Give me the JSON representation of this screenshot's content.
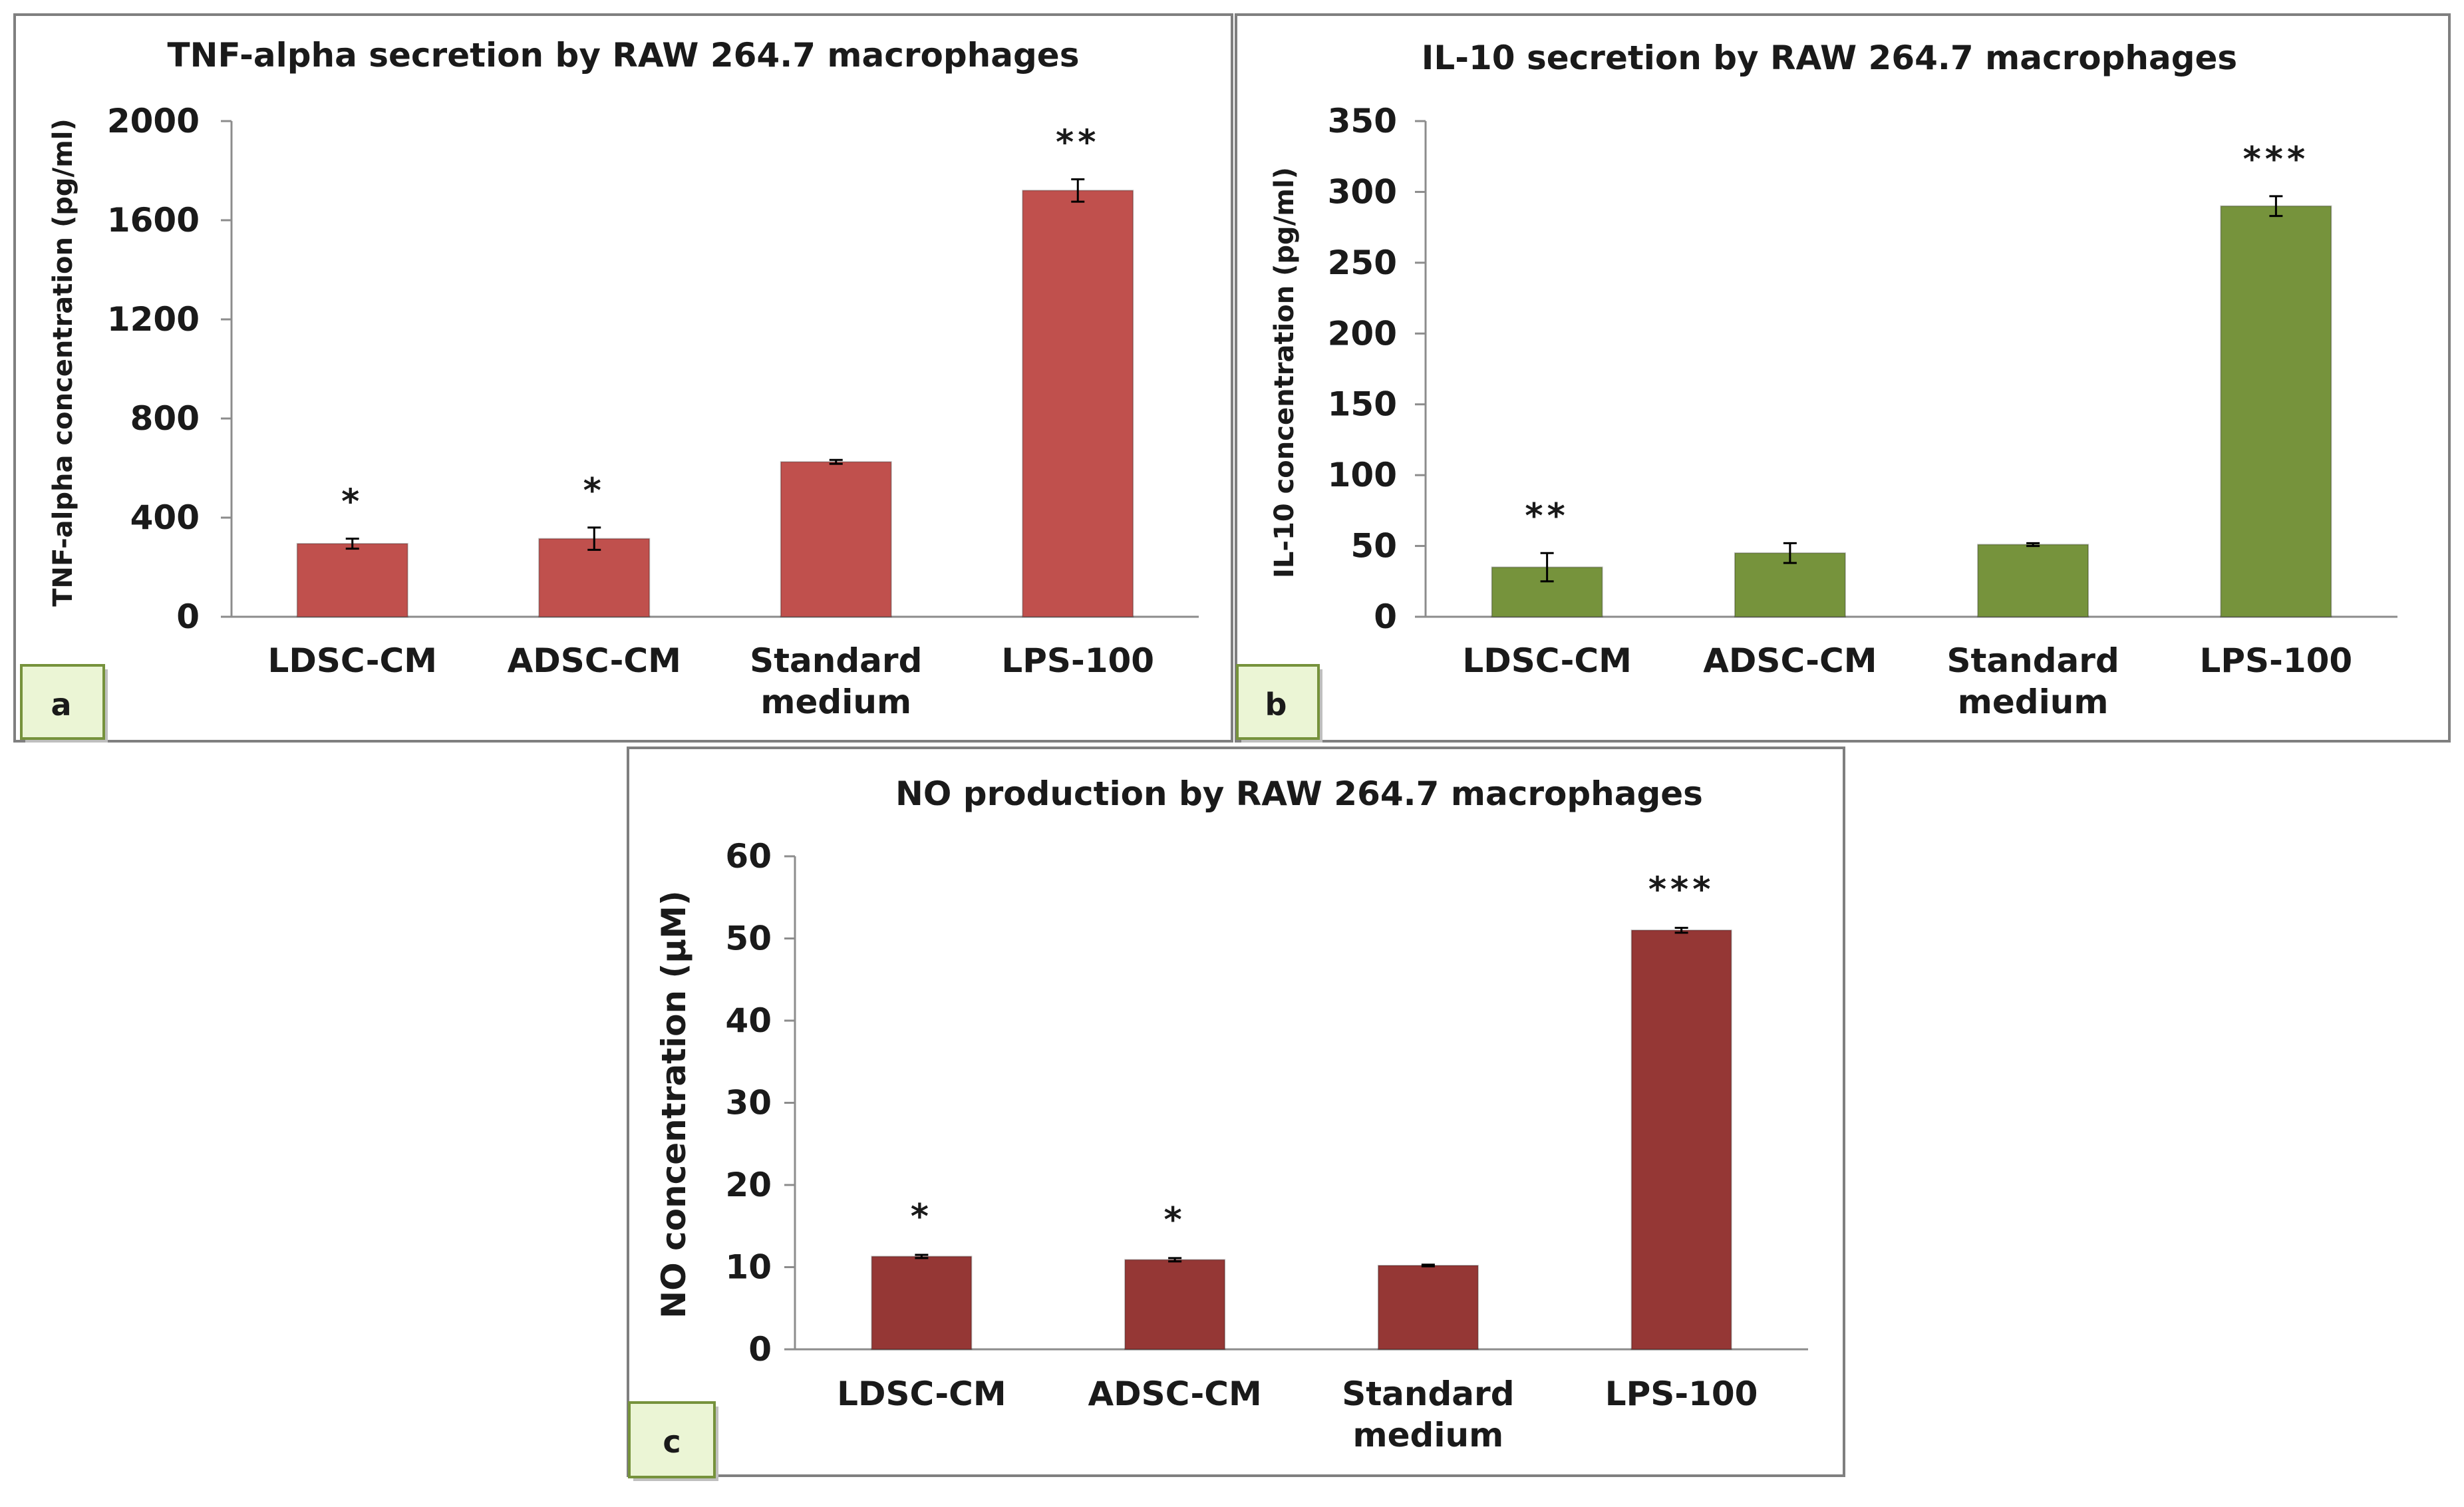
{
  "chart_data": [
    {
      "panel": "a",
      "type": "bar",
      "title": "TNF-alpha secretion by RAW 264.7 macrophages",
      "ylabel": "TNF-alpha concentration (pg/ml)",
      "xlabel": "",
      "ylim": [
        0,
        2000
      ],
      "yticks": [
        0,
        400,
        800,
        1200,
        1600,
        2000
      ],
      "categories": [
        [
          "LDSC-CM"
        ],
        [
          "ADSC-CM"
        ],
        [
          "Standard",
          "medium"
        ],
        [
          "LPS-100"
        ]
      ],
      "values": [
        295,
        315,
        625,
        1720
      ],
      "errors": [
        20,
        45,
        8,
        45
      ],
      "significance": [
        "*",
        "*",
        "",
        "**"
      ],
      "color": "#c0504d"
    },
    {
      "panel": "b",
      "type": "bar",
      "title": "IL-10 secretion by RAW 264.7 macrophages",
      "ylabel": "IL-10 concentration (pg/ml)",
      "xlabel": "",
      "ylim": [
        0,
        350
      ],
      "yticks": [
        0,
        50,
        100,
        150,
        200,
        250,
        300,
        350
      ],
      "categories": [
        [
          "LDSC-CM"
        ],
        [
          "ADSC-CM"
        ],
        [
          "Standard",
          "medium"
        ],
        [
          "LPS-100"
        ]
      ],
      "values": [
        35,
        45,
        51,
        290
      ],
      "errors": [
        10,
        7,
        1,
        7
      ],
      "significance": [
        "**",
        "",
        "",
        "***"
      ],
      "color": "#76933c"
    },
    {
      "panel": "c",
      "type": "bar",
      "title": "NO production by RAW 264.7 macrophages",
      "ylabel": "NO concentration (µM)",
      "xlabel": "",
      "ylim": [
        0,
        60
      ],
      "yticks": [
        0,
        10,
        20,
        30,
        40,
        50,
        60
      ],
      "categories": [
        [
          "LDSC-CM"
        ],
        [
          "ADSC-CM"
        ],
        [
          "Standard",
          "medium"
        ],
        [
          "LPS-100"
        ]
      ],
      "values": [
        11.3,
        10.9,
        10.2,
        51
      ],
      "errors": [
        0.2,
        0.2,
        0.1,
        0.3
      ],
      "significance": [
        "*",
        "*",
        "",
        "***"
      ],
      "color": "#953735"
    }
  ]
}
